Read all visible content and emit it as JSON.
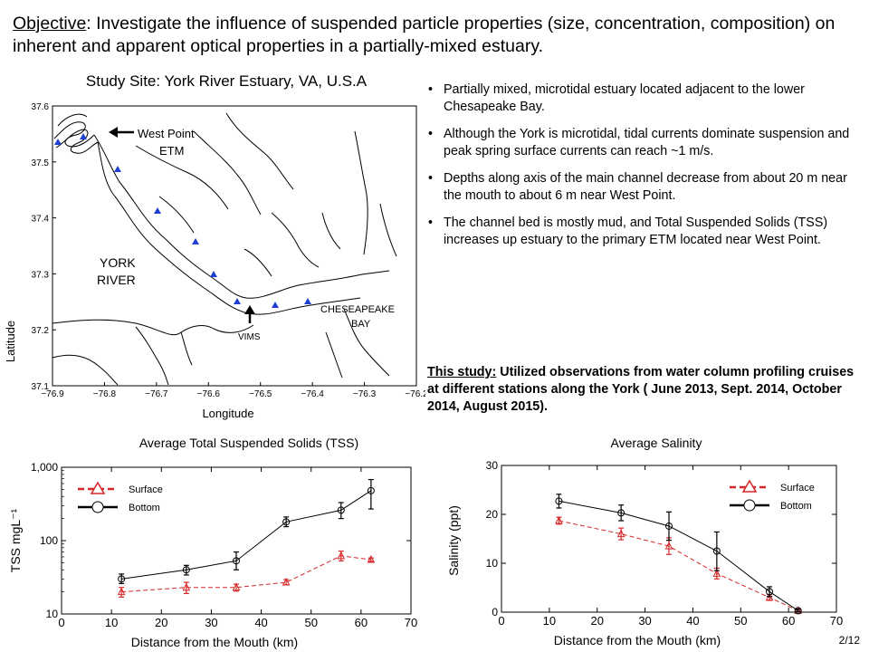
{
  "objective": {
    "label": "Objective",
    "text": ": Investigate the influence of suspended particle properties (size, concentration, composition) on inherent and apparent optical properties in a  partially-mixed estuary."
  },
  "map": {
    "title": "Study Site: York River Estuary, VA, U.S.A",
    "xlabel": "Longitude",
    "ylabel": "Latitude",
    "x_ticks": [
      "−76.9",
      "−76.8",
      "−76.7",
      "−76.6",
      "−76.5",
      "−76.4",
      "−76.3",
      "−76.2"
    ],
    "y_ticks": [
      "37.6",
      "37.5",
      "37.4",
      "37.3",
      "37.2",
      "37.1"
    ],
    "labels": {
      "west_point_1": "West Point",
      "west_point_2": "ETM",
      "york_1": "YORK",
      "york_2": "RIVER",
      "vims": "VIMS",
      "ches_1": "CHESEAPEAKE",
      "ches_2": "BAY"
    },
    "station_color": "#1f3fd0"
  },
  "bullets": [
    "Partially mixed, microtidal estuary located adjacent to the lower Chesapeake Bay.",
    "Although the York is microtidal, tidal currents dominate suspension and peak spring surface currents can reach ~1 m/s.",
    "Depths along axis of the main channel decrease from about 20 m near the mouth to about 6 m near West Point.",
    "The channel bed is mostly mud, and Total Suspended Solids (TSS) increases up estuary to the primary ETM located near West Point."
  ],
  "study": {
    "label": "This study:",
    "text": " Utilized observations from water column profiling cruises at different stations along the York ( June 2013,  Sept. 2014, October 2014, August 2015)."
  },
  "page_number": "2/12",
  "chart_data": [
    {
      "type": "line",
      "title": "Average Total Suspended Solids (TSS)",
      "xlabel": "Distance from the Mouth (km)",
      "ylabel": "TSS mgL⁻¹",
      "xlim": [
        0,
        70
      ],
      "ylim": [
        10,
        1000
      ],
      "y_scale": "log",
      "x_ticks": [
        0,
        10,
        20,
        30,
        40,
        50,
        60,
        70
      ],
      "y_ticks": [
        {
          "value": 10,
          "label": "10"
        },
        {
          "value": 100,
          "label": "100"
        },
        {
          "value": 1000,
          "label": "1,000"
        }
      ],
      "legend_position": "top-left",
      "series": [
        {
          "name": "Surface",
          "color": "#d62728",
          "dash": "dashed",
          "marker": "triangle",
          "x": [
            12,
            25,
            35,
            45,
            56,
            62
          ],
          "values": [
            20,
            23,
            23,
            27,
            62,
            55
          ],
          "err_low": [
            17,
            19,
            20.5,
            25,
            53,
            52
          ],
          "err_high": [
            23,
            27,
            25.5,
            29.5,
            72,
            58
          ]
        },
        {
          "name": "Bottom",
          "color": "#000000",
          "dash": "solid",
          "marker": "circle",
          "x": [
            12,
            25,
            35,
            45,
            56,
            62
          ],
          "values": [
            30,
            40,
            53,
            180,
            260,
            480
          ],
          "err_low": [
            26,
            34,
            40,
            155,
            200,
            270
          ],
          "err_high": [
            35,
            46,
            70,
            210,
            330,
            680
          ]
        }
      ]
    },
    {
      "type": "line",
      "title": "Average Salinity",
      "xlabel": "Distance from the Mouth (km)",
      "ylabel": "Salinity (ppt)",
      "xlim": [
        0,
        70
      ],
      "ylim": [
        0,
        30
      ],
      "y_scale": "linear",
      "x_ticks": [
        0,
        10,
        20,
        30,
        40,
        50,
        60,
        70
      ],
      "y_ticks": [
        {
          "value": 0,
          "label": "0"
        },
        {
          "value": 10,
          "label": "10"
        },
        {
          "value": 20,
          "label": "20"
        },
        {
          "value": 30,
          "label": "30"
        }
      ],
      "legend_position": "top-right",
      "series": [
        {
          "name": "Surface",
          "color": "#d62728",
          "dash": "dashed",
          "marker": "triangle",
          "x": [
            12,
            25,
            35,
            45,
            56,
            62
          ],
          "values": [
            18.7,
            16,
            13.5,
            7.9,
            3,
            0.3
          ],
          "err_low": [
            18,
            14.8,
            11.8,
            6.8,
            2.4,
            0.1
          ],
          "err_high": [
            19.4,
            17.2,
            15.2,
            9,
            3.6,
            0.5
          ]
        },
        {
          "name": "Bottom",
          "color": "#000000",
          "dash": "solid",
          "marker": "circle",
          "x": [
            12,
            25,
            35,
            45,
            56,
            62
          ],
          "values": [
            22.7,
            20.3,
            17.6,
            12.5,
            4.2,
            0.3
          ],
          "err_low": [
            21.3,
            18.7,
            14.7,
            8.5,
            3.2,
            0.1
          ],
          "err_high": [
            24.1,
            21.9,
            20.5,
            16.4,
            5.2,
            0.6
          ]
        }
      ]
    }
  ]
}
